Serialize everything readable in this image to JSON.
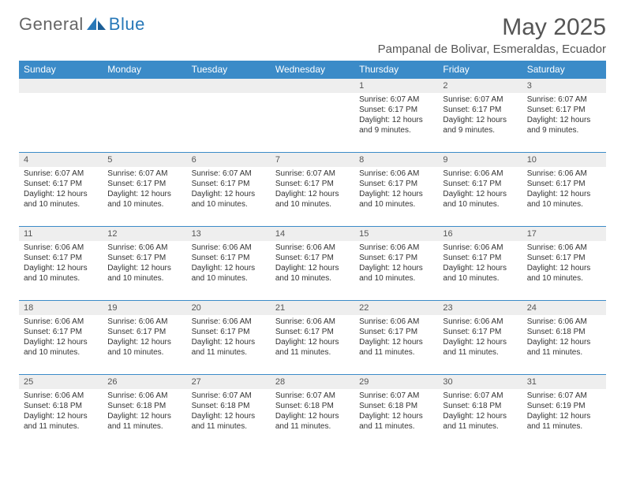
{
  "logo": {
    "general": "General",
    "blue": "Blue"
  },
  "title": "May 2025",
  "location": "Pampanal de Bolivar, Esmeraldas, Ecuador",
  "colors": {
    "header_bg": "#3b8bc8",
    "header_text": "#ffffff",
    "rule": "#3b8bc8",
    "daynum_bg": "#eeeeee",
    "text": "#333333",
    "logo_blue": "#2878b8"
  },
  "weekdays": [
    "Sunday",
    "Monday",
    "Tuesday",
    "Wednesday",
    "Thursday",
    "Friday",
    "Saturday"
  ],
  "weeks": [
    [
      null,
      null,
      null,
      null,
      {
        "n": "1",
        "sunrise": "Sunrise: 6:07 AM",
        "sunset": "Sunset: 6:17 PM",
        "daylight": "Daylight: 12 hours and 9 minutes."
      },
      {
        "n": "2",
        "sunrise": "Sunrise: 6:07 AM",
        "sunset": "Sunset: 6:17 PM",
        "daylight": "Daylight: 12 hours and 9 minutes."
      },
      {
        "n": "3",
        "sunrise": "Sunrise: 6:07 AM",
        "sunset": "Sunset: 6:17 PM",
        "daylight": "Daylight: 12 hours and 9 minutes."
      }
    ],
    [
      {
        "n": "4",
        "sunrise": "Sunrise: 6:07 AM",
        "sunset": "Sunset: 6:17 PM",
        "daylight": "Daylight: 12 hours and 10 minutes."
      },
      {
        "n": "5",
        "sunrise": "Sunrise: 6:07 AM",
        "sunset": "Sunset: 6:17 PM",
        "daylight": "Daylight: 12 hours and 10 minutes."
      },
      {
        "n": "6",
        "sunrise": "Sunrise: 6:07 AM",
        "sunset": "Sunset: 6:17 PM",
        "daylight": "Daylight: 12 hours and 10 minutes."
      },
      {
        "n": "7",
        "sunrise": "Sunrise: 6:07 AM",
        "sunset": "Sunset: 6:17 PM",
        "daylight": "Daylight: 12 hours and 10 minutes."
      },
      {
        "n": "8",
        "sunrise": "Sunrise: 6:06 AM",
        "sunset": "Sunset: 6:17 PM",
        "daylight": "Daylight: 12 hours and 10 minutes."
      },
      {
        "n": "9",
        "sunrise": "Sunrise: 6:06 AM",
        "sunset": "Sunset: 6:17 PM",
        "daylight": "Daylight: 12 hours and 10 minutes."
      },
      {
        "n": "10",
        "sunrise": "Sunrise: 6:06 AM",
        "sunset": "Sunset: 6:17 PM",
        "daylight": "Daylight: 12 hours and 10 minutes."
      }
    ],
    [
      {
        "n": "11",
        "sunrise": "Sunrise: 6:06 AM",
        "sunset": "Sunset: 6:17 PM",
        "daylight": "Daylight: 12 hours and 10 minutes."
      },
      {
        "n": "12",
        "sunrise": "Sunrise: 6:06 AM",
        "sunset": "Sunset: 6:17 PM",
        "daylight": "Daylight: 12 hours and 10 minutes."
      },
      {
        "n": "13",
        "sunrise": "Sunrise: 6:06 AM",
        "sunset": "Sunset: 6:17 PM",
        "daylight": "Daylight: 12 hours and 10 minutes."
      },
      {
        "n": "14",
        "sunrise": "Sunrise: 6:06 AM",
        "sunset": "Sunset: 6:17 PM",
        "daylight": "Daylight: 12 hours and 10 minutes."
      },
      {
        "n": "15",
        "sunrise": "Sunrise: 6:06 AM",
        "sunset": "Sunset: 6:17 PM",
        "daylight": "Daylight: 12 hours and 10 minutes."
      },
      {
        "n": "16",
        "sunrise": "Sunrise: 6:06 AM",
        "sunset": "Sunset: 6:17 PM",
        "daylight": "Daylight: 12 hours and 10 minutes."
      },
      {
        "n": "17",
        "sunrise": "Sunrise: 6:06 AM",
        "sunset": "Sunset: 6:17 PM",
        "daylight": "Daylight: 12 hours and 10 minutes."
      }
    ],
    [
      {
        "n": "18",
        "sunrise": "Sunrise: 6:06 AM",
        "sunset": "Sunset: 6:17 PM",
        "daylight": "Daylight: 12 hours and 10 minutes."
      },
      {
        "n": "19",
        "sunrise": "Sunrise: 6:06 AM",
        "sunset": "Sunset: 6:17 PM",
        "daylight": "Daylight: 12 hours and 10 minutes."
      },
      {
        "n": "20",
        "sunrise": "Sunrise: 6:06 AM",
        "sunset": "Sunset: 6:17 PM",
        "daylight": "Daylight: 12 hours and 11 minutes."
      },
      {
        "n": "21",
        "sunrise": "Sunrise: 6:06 AM",
        "sunset": "Sunset: 6:17 PM",
        "daylight": "Daylight: 12 hours and 11 minutes."
      },
      {
        "n": "22",
        "sunrise": "Sunrise: 6:06 AM",
        "sunset": "Sunset: 6:17 PM",
        "daylight": "Daylight: 12 hours and 11 minutes."
      },
      {
        "n": "23",
        "sunrise": "Sunrise: 6:06 AM",
        "sunset": "Sunset: 6:17 PM",
        "daylight": "Daylight: 12 hours and 11 minutes."
      },
      {
        "n": "24",
        "sunrise": "Sunrise: 6:06 AM",
        "sunset": "Sunset: 6:18 PM",
        "daylight": "Daylight: 12 hours and 11 minutes."
      }
    ],
    [
      {
        "n": "25",
        "sunrise": "Sunrise: 6:06 AM",
        "sunset": "Sunset: 6:18 PM",
        "daylight": "Daylight: 12 hours and 11 minutes."
      },
      {
        "n": "26",
        "sunrise": "Sunrise: 6:06 AM",
        "sunset": "Sunset: 6:18 PM",
        "daylight": "Daylight: 12 hours and 11 minutes."
      },
      {
        "n": "27",
        "sunrise": "Sunrise: 6:07 AM",
        "sunset": "Sunset: 6:18 PM",
        "daylight": "Daylight: 12 hours and 11 minutes."
      },
      {
        "n": "28",
        "sunrise": "Sunrise: 6:07 AM",
        "sunset": "Sunset: 6:18 PM",
        "daylight": "Daylight: 12 hours and 11 minutes."
      },
      {
        "n": "29",
        "sunrise": "Sunrise: 6:07 AM",
        "sunset": "Sunset: 6:18 PM",
        "daylight": "Daylight: 12 hours and 11 minutes."
      },
      {
        "n": "30",
        "sunrise": "Sunrise: 6:07 AM",
        "sunset": "Sunset: 6:18 PM",
        "daylight": "Daylight: 12 hours and 11 minutes."
      },
      {
        "n": "31",
        "sunrise": "Sunrise: 6:07 AM",
        "sunset": "Sunset: 6:19 PM",
        "daylight": "Daylight: 12 hours and 11 minutes."
      }
    ]
  ]
}
